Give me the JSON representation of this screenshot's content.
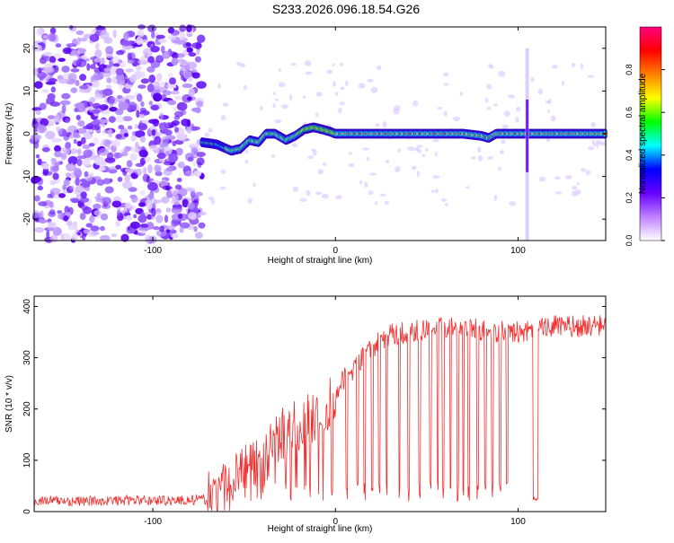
{
  "title": "S233.2026.096.18.54.G26",
  "chart_data": [
    {
      "type": "heatmap",
      "title": "S233.2026.096.18.54.G26",
      "xlabel": "Height of straight line (km)",
      "ylabel": "Frequency (Hz)",
      "xlim": [
        -165,
        148
      ],
      "ylim": [
        -25,
        25
      ],
      "x_ticks": [
        -100,
        0,
        100
      ],
      "y_ticks": [
        20,
        10,
        0,
        -10,
        -20
      ],
      "colorbar": {
        "label": "Normalized spectral amplitude",
        "range": [
          0,
          1
        ],
        "ticks": [
          "0.0",
          "0.2",
          "0.4",
          "0.6",
          "0.8"
        ],
        "colors": [
          "#ffffff",
          "#c080ff",
          "#6600ff",
          "#0000ff",
          "#00ffff",
          "#00ff00",
          "#ffff00",
          "#ff8000",
          "#ff0000",
          "#ff0080"
        ]
      },
      "noise_region_x": [
        -165,
        -73
      ],
      "trace": {
        "x": [
          -73,
          -65,
          -57,
          -52,
          -47,
          -42,
          -38,
          -33,
          -27,
          -22,
          -17,
          -12,
          -7,
          -3,
          0,
          10,
          20,
          30,
          40,
          50,
          60,
          70,
          80,
          84,
          88,
          95,
          100,
          104,
          108,
          115,
          125,
          135,
          148
        ],
        "y": [
          -2,
          -2.5,
          -4,
          -3.5,
          -1.5,
          -2,
          0,
          0,
          -1.5,
          -0.5,
          1,
          1.5,
          1,
          0.5,
          0,
          0,
          0,
          0,
          0,
          0,
          0,
          0,
          -0.5,
          -1,
          0,
          0,
          0,
          0,
          0,
          0,
          0,
          0,
          0
        ]
      },
      "spike_x": 105
    },
    {
      "type": "line",
      "xlabel": "Height of straight line (km)",
      "ylabel": "SNR (10 * v/v)",
      "xlim": [
        -165,
        148
      ],
      "ylim": [
        0,
        420
      ],
      "x_ticks": [
        -100,
        0,
        100
      ],
      "y_ticks": [
        0,
        100,
        200,
        300,
        400
      ],
      "series": [
        {
          "name": "SNR",
          "color": "#f03030",
          "x": [
            -165,
            -140,
            -110,
            -80,
            -66,
            -60,
            -55,
            -50,
            -45,
            -40,
            -35,
            -30,
            -25,
            -20,
            -15,
            -10,
            -5,
            0,
            5,
            10,
            15,
            20,
            25,
            30,
            40,
            50,
            60,
            70,
            80,
            90,
            100,
            106,
            110,
            112,
            120,
            130,
            140,
            148
          ],
          "y": [
            22,
            20,
            22,
            22,
            25,
            45,
            60,
            90,
            105,
            95,
            120,
            150,
            170,
            160,
            175,
            185,
            200,
            230,
            260,
            280,
            300,
            320,
            335,
            345,
            350,
            355,
            360,
            365,
            355,
            350,
            350,
            350,
            345,
            360,
            362,
            360,
            362,
            362
          ]
        }
      ],
      "dropouts_x": [
        -2,
        6,
        12,
        16,
        20,
        24,
        28,
        35,
        40,
        46,
        52,
        56,
        59,
        63,
        67,
        70,
        73,
        78,
        82,
        86,
        90,
        94
      ],
      "low_band_x": [
        108,
        111
      ]
    }
  ]
}
